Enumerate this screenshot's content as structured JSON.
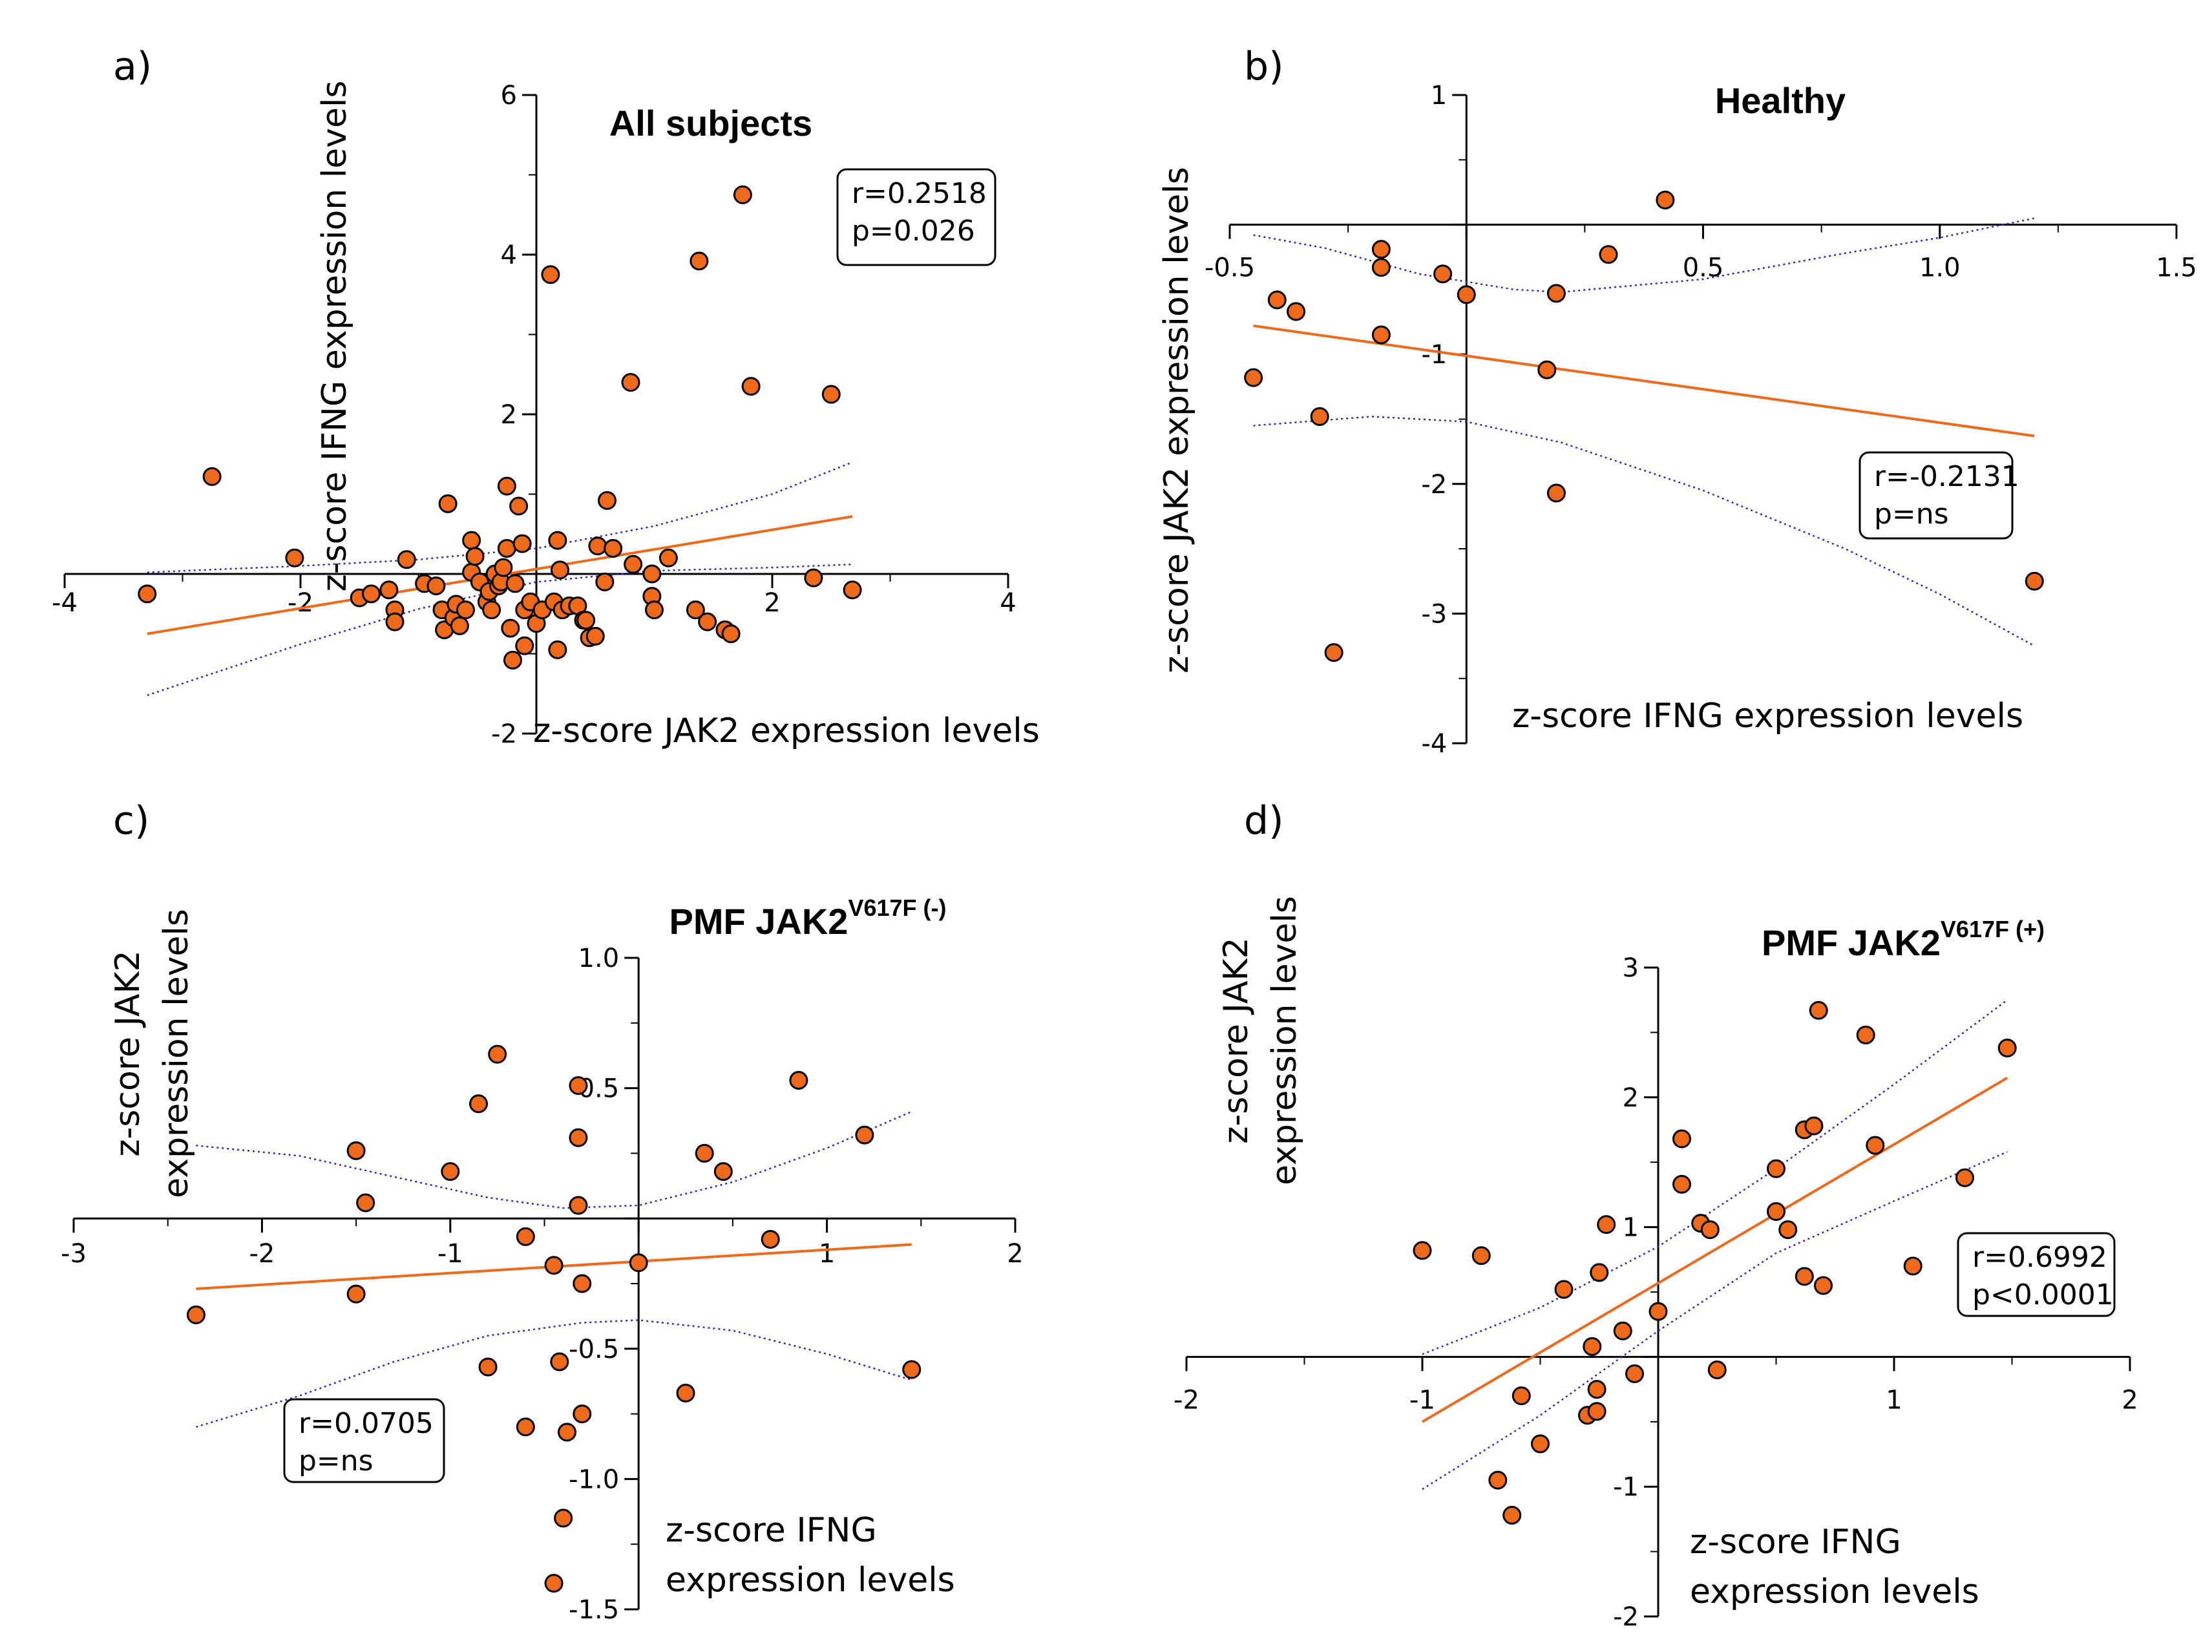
{
  "chart_data": [
    {
      "type": "scatter",
      "panel_label": "a)",
      "title": "All subjects",
      "xlabel": "z-score JAK2 expression levels",
      "ylabel": "z-score IFNG expression levels",
      "xlim": [
        -4,
        4
      ],
      "ylim": [
        -2,
        6
      ],
      "x_ticks": [
        -4,
        -2,
        2,
        4
      ],
      "x_tick_labels": [
        "-4",
        "-2",
        "2",
        "4"
      ],
      "y_ticks": [
        -2,
        2,
        4,
        6
      ],
      "y_tick_labels": [
        "-2",
        "2",
        "4",
        "6"
      ],
      "stats": [
        "r=0.2518",
        "p=0.026"
      ],
      "points": [
        [
          -3.3,
          -0.25
        ],
        [
          -2.75,
          1.22
        ],
        [
          -2.05,
          0.2
        ],
        [
          -1.5,
          -0.3
        ],
        [
          -1.4,
          -0.25
        ],
        [
          -1.25,
          -0.2
        ],
        [
          -1.2,
          -0.45
        ],
        [
          -1.2,
          -0.6
        ],
        [
          -1.1,
          0.18
        ],
        [
          -0.95,
          -0.12
        ],
        [
          -0.85,
          -0.15
        ],
        [
          -0.8,
          -0.45
        ],
        [
          -0.78,
          -0.7
        ],
        [
          -0.75,
          0.88
        ],
        [
          -0.7,
          -0.55
        ],
        [
          -0.68,
          -0.38
        ],
        [
          -0.65,
          -0.65
        ],
        [
          -0.6,
          -0.45
        ],
        [
          -0.55,
          0.42
        ],
        [
          -0.55,
          0.02
        ],
        [
          -0.52,
          0.22
        ],
        [
          -0.48,
          -0.1
        ],
        [
          -0.42,
          -0.35
        ],
        [
          -0.4,
          -0.22
        ],
        [
          -0.38,
          -0.45
        ],
        [
          -0.35,
          0.0
        ],
        [
          -0.32,
          -0.15
        ],
        [
          -0.3,
          -0.1
        ],
        [
          -0.28,
          0.08
        ],
        [
          -0.25,
          1.1
        ],
        [
          -0.25,
          0.32
        ],
        [
          -0.22,
          -0.68
        ],
        [
          -0.2,
          -1.08
        ],
        [
          -0.18,
          -0.12
        ],
        [
          -0.15,
          0.85
        ],
        [
          -0.12,
          0.38
        ],
        [
          -0.1,
          -0.9
        ],
        [
          -0.1,
          -0.45
        ],
        [
          -0.05,
          -0.35
        ],
        [
          0.0,
          -0.62
        ],
        [
          0.05,
          -0.45
        ],
        [
          0.12,
          3.75
        ],
        [
          0.15,
          -0.35
        ],
        [
          0.18,
          0.42
        ],
        [
          0.18,
          -0.95
        ],
        [
          0.2,
          0.05
        ],
        [
          0.22,
          -0.45
        ],
        [
          0.28,
          -0.4
        ],
        [
          0.35,
          -0.4
        ],
        [
          0.4,
          -0.58
        ],
        [
          0.42,
          -0.58
        ],
        [
          0.45,
          -0.8
        ],
        [
          0.5,
          -0.78
        ],
        [
          0.52,
          0.35
        ],
        [
          0.58,
          -0.1
        ],
        [
          0.6,
          0.92
        ],
        [
          0.65,
          0.32
        ],
        [
          0.8,
          2.4
        ],
        [
          0.82,
          0.12
        ],
        [
          0.98,
          0.0
        ],
        [
          0.98,
          -0.28
        ],
        [
          1.0,
          -0.45
        ],
        [
          1.12,
          0.2
        ],
        [
          1.38,
          3.92
        ],
        [
          1.35,
          -0.45
        ],
        [
          1.45,
          -0.6
        ],
        [
          1.6,
          -0.7
        ],
        [
          1.65,
          -0.75
        ],
        [
          1.75,
          4.75
        ],
        [
          1.82,
          2.35
        ],
        [
          2.35,
          -0.05
        ],
        [
          2.5,
          2.25
        ],
        [
          2.68,
          -0.2
        ]
      ],
      "fit_line": {
        "x": [
          -3.3,
          2.68
        ],
        "y": [
          -0.75,
          0.72
        ]
      },
      "ci_upper": {
        "x": [
          -3.3,
          -2,
          -1,
          0,
          1,
          2,
          2.68
        ],
        "y": [
          0.02,
          0.1,
          0.18,
          0.32,
          0.6,
          1.0,
          1.4
        ]
      },
      "ci_lower": {
        "x": [
          -3.3,
          -2,
          -1,
          0,
          1,
          2,
          2.68
        ],
        "y": [
          -1.52,
          -0.88,
          -0.44,
          -0.1,
          0.04,
          0.08,
          0.12
        ]
      }
    },
    {
      "type": "scatter",
      "panel_label": "b)",
      "title": "Healthy",
      "xlabel": "z-score IFNG expression levels",
      "ylabel": "z-score JAK2 expression levels",
      "xlim": [
        -0.5,
        1.5
      ],
      "ylim": [
        -4,
        1
      ],
      "x_ticks": [
        -0.5,
        0.5,
        1.0,
        1.5
      ],
      "x_tick_labels": [
        "-0.5",
        "0.5",
        "1.0",
        "1.5"
      ],
      "y_ticks": [
        1,
        -1,
        -2,
        -3,
        -4
      ],
      "y_tick_labels": [
        "1",
        "-1",
        "-2",
        "-3",
        "-4"
      ],
      "stats": [
        "r=-0.2131",
        "p=ns"
      ],
      "points": [
        [
          -0.45,
          -1.18
        ],
        [
          -0.4,
          -0.58
        ],
        [
          -0.36,
          -0.67
        ],
        [
          -0.31,
          -1.48
        ],
        [
          -0.28,
          -3.3
        ],
        [
          -0.18,
          -0.19
        ],
        [
          -0.18,
          -0.33
        ],
        [
          -0.18,
          -0.85
        ],
        [
          -0.05,
          -0.38
        ],
        [
          0.0,
          -0.54
        ],
        [
          0.17,
          -1.12
        ],
        [
          0.19,
          -0.53
        ],
        [
          0.19,
          -2.07
        ],
        [
          0.3,
          -0.23
        ],
        [
          0.42,
          0.19
        ],
        [
          1.2,
          -2.75
        ]
      ],
      "fit_line": {
        "x": [
          -0.45,
          1.2
        ],
        "y": [
          -0.78,
          -1.63
        ]
      },
      "ci_upper": {
        "x": [
          -0.45,
          -0.3,
          -0.1,
          0.1,
          0.2,
          0.5,
          0.8,
          1.0,
          1.2
        ],
        "y": [
          -0.08,
          -0.18,
          -0.38,
          -0.5,
          -0.52,
          -0.42,
          -0.22,
          -0.1,
          0.05
        ]
      },
      "ci_lower": {
        "x": [
          -0.45,
          -0.2,
          0.0,
          0.2,
          0.5,
          0.8,
          1.0,
          1.2
        ],
        "y": [
          -1.55,
          -1.48,
          -1.52,
          -1.68,
          -2.05,
          -2.5,
          -2.85,
          -3.25
        ]
      }
    },
    {
      "type": "scatter",
      "panel_label": "c)",
      "title": "PMF JAK2",
      "title_superscript": "V617F (-)",
      "xlabel": [
        "z-score IFNG",
        "expression levels"
      ],
      "ylabel": [
        "z-score JAK2",
        "expression levels"
      ],
      "xlim": [
        -3,
        2
      ],
      "ylim": [
        -1.5,
        1.0
      ],
      "x_ticks": [
        -3,
        -2,
        -1,
        1,
        2
      ],
      "x_tick_labels": [
        "-3",
        "-2",
        "-1",
        "1",
        "2"
      ],
      "y_ticks": [
        1.0,
        0.5,
        -0.5,
        -1.0,
        -1.5
      ],
      "y_tick_labels": [
        "1.0",
        "0.5",
        "-0.5",
        "-1.0",
        "-1.5"
      ],
      "stats": [
        "r=0.0705",
        "p=ns"
      ],
      "points": [
        [
          -2.35,
          -0.37
        ],
        [
          -1.5,
          0.26
        ],
        [
          -1.45,
          0.06
        ],
        [
          -1.5,
          -0.29
        ],
        [
          -1.0,
          0.18
        ],
        [
          -0.85,
          0.44
        ],
        [
          -0.8,
          -0.57
        ],
        [
          -0.75,
          0.63
        ],
        [
          -0.6,
          -0.07
        ],
        [
          -0.6,
          -0.8
        ],
        [
          -0.45,
          -0.18
        ],
        [
          -0.45,
          -1.4
        ],
        [
          -0.42,
          -0.55
        ],
        [
          -0.4,
          -1.15
        ],
        [
          -0.38,
          -0.82
        ],
        [
          -0.32,
          0.05
        ],
        [
          -0.32,
          0.31
        ],
        [
          -0.32,
          0.51
        ],
        [
          -0.3,
          -0.75
        ],
        [
          -0.3,
          -0.25
        ],
        [
          0.0,
          -0.17
        ],
        [
          0.25,
          -0.67
        ],
        [
          0.35,
          0.25
        ],
        [
          0.45,
          0.18
        ],
        [
          0.7,
          -0.08
        ],
        [
          0.85,
          0.53
        ],
        [
          1.2,
          0.32
        ],
        [
          1.45,
          -0.58
        ]
      ],
      "fit_line": {
        "x": [
          -2.35,
          1.45
        ],
        "y": [
          -0.27,
          -0.1
        ]
      },
      "ci_upper": {
        "x": [
          -2.35,
          -1.8,
          -1.3,
          -0.8,
          -0.4,
          0.0,
          0.5,
          1.0,
          1.45
        ],
        "y": [
          0.28,
          0.24,
          0.16,
          0.08,
          0.04,
          0.05,
          0.14,
          0.27,
          0.41
        ]
      },
      "ci_lower": {
        "x": [
          -2.35,
          -1.8,
          -1.3,
          -0.8,
          -0.3,
          0.0,
          0.5,
          1.0,
          1.45
        ],
        "y": [
          -0.8,
          -0.68,
          -0.55,
          -0.45,
          -0.4,
          -0.39,
          -0.43,
          -0.52,
          -0.62
        ]
      }
    },
    {
      "type": "scatter",
      "panel_label": "d)",
      "title": "PMF JAK2",
      "title_superscript": "V617F (+)",
      "xlabel": [
        "z-score IFNG",
        "expression levels"
      ],
      "ylabel": [
        "z-score JAK2",
        "expression levels"
      ],
      "xlim": [
        -2,
        2
      ],
      "ylim": [
        -2,
        3
      ],
      "x_ticks": [
        -2,
        -1,
        1,
        2
      ],
      "x_tick_labels": [
        "-2",
        "-1",
        "1",
        "2"
      ],
      "y_ticks": [
        3,
        2,
        1,
        -1,
        -2
      ],
      "y_tick_labels": [
        "3",
        "2",
        "1",
        "-1",
        "-2"
      ],
      "stats": [
        "r=0.6992",
        "p<0.0001"
      ],
      "points": [
        [
          -1.0,
          0.82
        ],
        [
          -0.75,
          0.78
        ],
        [
          -0.68,
          -0.95
        ],
        [
          -0.62,
          -1.22
        ],
        [
          -0.58,
          -0.3
        ],
        [
          -0.5,
          -0.67
        ],
        [
          -0.4,
          0.52
        ],
        [
          -0.3,
          -0.45
        ],
        [
          -0.28,
          0.08
        ],
        [
          -0.26,
          -0.25
        ],
        [
          -0.26,
          -0.42
        ],
        [
          -0.25,
          0.65
        ],
        [
          -0.22,
          1.02
        ],
        [
          -0.15,
          0.2
        ],
        [
          -0.1,
          -0.13
        ],
        [
          0.0,
          0.35
        ],
        [
          0.1,
          1.68
        ],
        [
          0.1,
          1.33
        ],
        [
          0.18,
          1.03
        ],
        [
          0.22,
          0.98
        ],
        [
          0.25,
          -0.1
        ],
        [
          0.5,
          1.12
        ],
        [
          0.5,
          1.45
        ],
        [
          0.55,
          0.98
        ],
        [
          0.62,
          0.62
        ],
        [
          0.62,
          1.75
        ],
        [
          0.66,
          1.78
        ],
        [
          0.68,
          2.67
        ],
        [
          0.7,
          0.55
        ],
        [
          0.88,
          2.48
        ],
        [
          0.92,
          1.63
        ],
        [
          1.08,
          0.7
        ],
        [
          1.3,
          1.38
        ],
        [
          1.48,
          2.38
        ]
      ],
      "fit_line": {
        "x": [
          -1.0,
          1.48
        ],
        "y": [
          -0.5,
          2.15
        ]
      },
      "ci_upper": {
        "x": [
          -1.0,
          -0.5,
          0.0,
          0.5,
          1.0,
          1.48
        ],
        "y": [
          0.02,
          0.38,
          0.85,
          1.45,
          2.1,
          2.75
        ]
      },
      "ci_lower": {
        "x": [
          -1.0,
          -0.5,
          0.0,
          0.5,
          1.0,
          1.48
        ],
        "y": [
          -1.02,
          -0.45,
          0.2,
          0.8,
          1.2,
          1.58
        ]
      }
    }
  ],
  "colors": {
    "point_fill": "#EE6A1A",
    "point_stroke": "#000000",
    "fit_line": "#EE6A1A",
    "confidence_band": "#2A2ACC",
    "axis": "#000000"
  }
}
